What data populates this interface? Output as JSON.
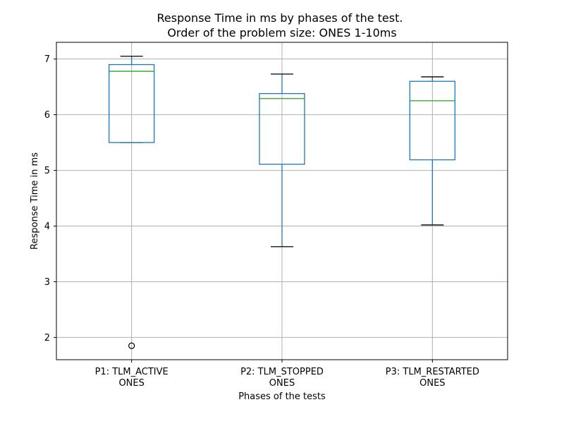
{
  "chart_data": {
    "type": "box",
    "title_lines": [
      "Response Time in ms by phases of the test.",
      "Order of the problem size: ONES 1-10ms"
    ],
    "xlabel": "Phases of the tests",
    "ylabel": "Response Time in ms",
    "ylim": [
      1.6,
      7.3
    ],
    "yticks": [
      2,
      3,
      4,
      5,
      6,
      7
    ],
    "grid": true,
    "categories": [
      {
        "label_lines": [
          "P1: TLM_ACTIVE",
          "ONES"
        ],
        "whisker_low": 5.5,
        "q1": 5.5,
        "median": 6.78,
        "q3": 6.9,
        "whisker_high": 7.05,
        "outliers": [
          1.85
        ]
      },
      {
        "label_lines": [
          "P2: TLM_STOPPED",
          "ONES"
        ],
        "whisker_low": 3.63,
        "q1": 5.11,
        "median": 6.29,
        "q3": 6.38,
        "whisker_high": 6.73,
        "outliers": []
      },
      {
        "label_lines": [
          "P3: TLM_RESTARTED",
          "ONES"
        ],
        "whisker_low": 4.02,
        "q1": 5.19,
        "median": 6.25,
        "q3": 6.6,
        "whisker_high": 6.68,
        "outliers": []
      }
    ],
    "colors": {
      "box": "#1f77b4",
      "median": "#2ca02c",
      "caps": "#000000",
      "grid": "#b0b0b0",
      "outlier": "#000000"
    }
  }
}
